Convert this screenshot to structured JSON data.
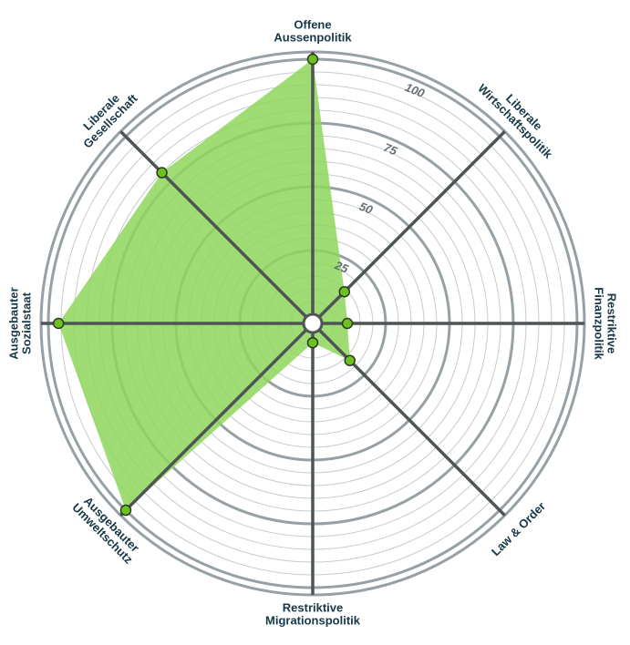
{
  "chart_data": {
    "type": "radar",
    "categories": [
      [
        "Offene",
        "Aussenpolitik"
      ],
      [
        "Liberale",
        "Wirtschaftspolitik"
      ],
      [
        "Restriktive",
        "Finanzpolitik"
      ],
      [
        "Law & Order"
      ],
      [
        "Restriktive",
        "Migrationspolitik"
      ],
      [
        "Ausgebauter",
        "Umweltschutz"
      ],
      [
        "Ausgebauter",
        "Sozialstaat"
      ],
      [
        "Liberale",
        "Gesellschaft"
      ]
    ],
    "values": [
      100,
      14,
      10,
      17,
      4,
      100,
      96,
      80
    ],
    "color": "#8fd65c",
    "ylim": [
      0,
      100
    ],
    "yticks": [
      25,
      50,
      75,
      100
    ],
    "minor_yticks": [
      5,
      10,
      15,
      20,
      30,
      35,
      40,
      45,
      55,
      60,
      65,
      70,
      80,
      85,
      90,
      95
    ],
    "grid": true
  }
}
